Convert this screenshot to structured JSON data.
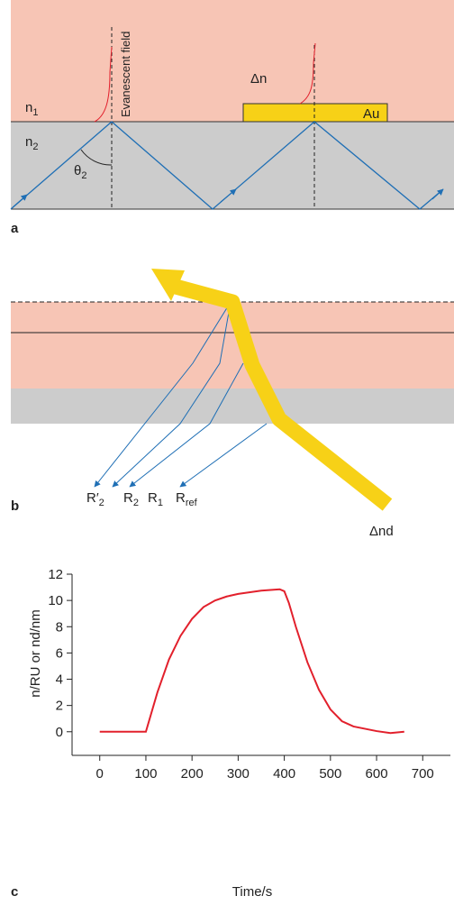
{
  "panel_a": {
    "label": "a",
    "n1": {
      "text": "n",
      "sub": "1"
    },
    "n2": {
      "text": "n",
      "sub": "2"
    },
    "theta": {
      "text": "θ",
      "sub": "2"
    },
    "field": "Evanescent field",
    "delta_n": "Δn",
    "gold": "Au"
  },
  "panel_b": {
    "label": "b",
    "r2p": {
      "text": "R′",
      "sub": "2"
    },
    "r2": {
      "text": "R",
      "sub": "2"
    },
    "r1": {
      "text": "R",
      "sub": "1"
    },
    "rref": {
      "text": "R",
      "sub": "ref"
    },
    "delta_nd": "Δnd"
  },
  "chart_data": {
    "type": "line",
    "label": "c",
    "xlabel": "Time/s",
    "ylabel": "n/RU  or  nd/nm",
    "color": "#e2202c",
    "x": [
      0,
      100,
      125,
      150,
      175,
      200,
      225,
      250,
      275,
      300,
      350,
      390,
      400,
      410,
      425,
      450,
      475,
      500,
      525,
      550,
      600,
      630,
      660
    ],
    "values": [
      0,
      0,
      3,
      5.5,
      7.3,
      8.6,
      9.5,
      10,
      10.3,
      10.5,
      10.75,
      10.85,
      10.7,
      9.8,
      8,
      5.3,
      3.2,
      1.7,
      0.8,
      0.4,
      0.05,
      -0.1,
      0
    ],
    "xlim": [
      -60,
      760
    ],
    "ylim": [
      -1.8,
      12
    ],
    "xticks": [
      0,
      100,
      200,
      300,
      400,
      500,
      600,
      700
    ],
    "yticks": [
      0,
      2,
      4,
      6,
      8,
      10,
      12
    ]
  }
}
